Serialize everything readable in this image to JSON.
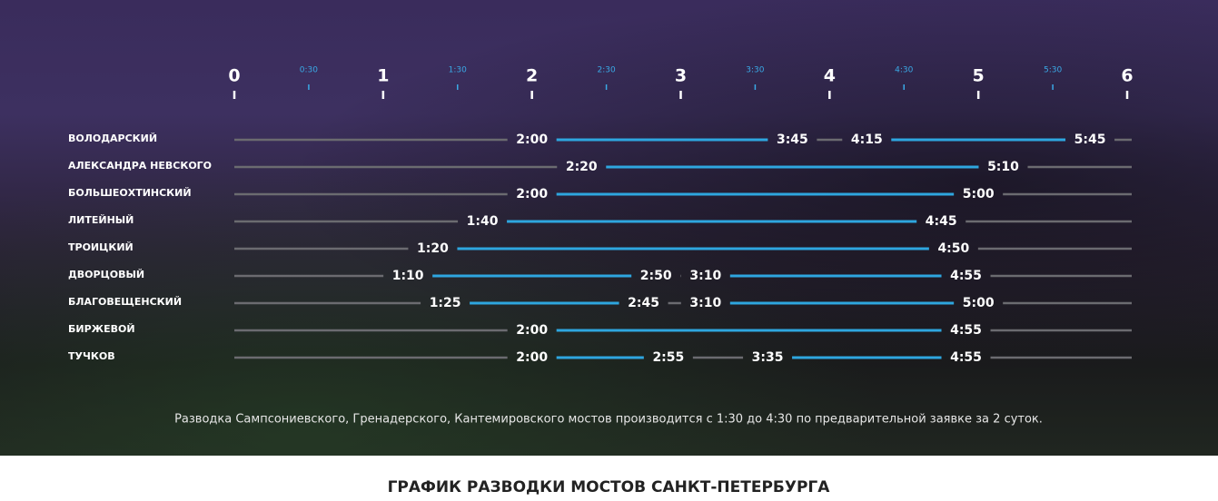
{
  "chart_data": {
    "type": "timeline",
    "title": "ГРАФИК РАЗВОДКИ МОСТОВ САНКТ-ПЕТЕРБУРГА",
    "note": "Разводка Сампсониевского, Гренадерского, Кантемировского мостов производится с 1:30 до 4:30 по предварительной заявке за 2 суток.",
    "xlim": [
      0,
      6
    ],
    "xticks": [
      0,
      {
        "value": 0.5,
        "label": "0:30"
      },
      1,
      {
        "value": 1.5,
        "label": "1:30"
      },
      2,
      {
        "value": 2.5,
        "label": "2:30"
      },
      3,
      {
        "value": 3.5,
        "label": "3:30"
      },
      4,
      {
        "value": 4.5,
        "label": "4:30"
      },
      5,
      {
        "value": 5.5,
        "label": "5:30"
      },
      6
    ],
    "open_color": "#2ea6df",
    "closed_color": "#6b6b70",
    "series": [
      {
        "name": "ВОЛОДАРСКИЙ",
        "values": [
          2,
          3.75,
          4.25,
          5.75
        ],
        "value_labels": [
          "2:00",
          "3:45",
          "4:15",
          "5:45"
        ]
      },
      {
        "name": "АЛЕКСАНДРА НЕВСКОГО",
        "values": [
          2.3333,
          5.1667
        ],
        "value_labels": [
          "2:20",
          "5:10"
        ]
      },
      {
        "name": "БОЛЬШЕОХТИНСКИЙ",
        "values": [
          2,
          5
        ],
        "value_labels": [
          "2:00",
          "5:00"
        ]
      },
      {
        "name": "ЛИТЕЙНЫЙ",
        "values": [
          1.6667,
          4.75
        ],
        "value_labels": [
          "1:40",
          "4:45"
        ]
      },
      {
        "name": "ТРОИЦКИЙ",
        "values": [
          1.3333,
          4.8333
        ],
        "value_labels": [
          "1:20",
          "4:50"
        ]
      },
      {
        "name": "ДВОРЦОВЫЙ",
        "values": [
          1.1667,
          2.8333,
          3.1667,
          4.9167
        ],
        "value_labels": [
          "1:10",
          "2:50",
          "3:10",
          "4:55"
        ]
      },
      {
        "name": "БЛАГОВЕЩЕНСКИЙ",
        "values": [
          1.4167,
          2.75,
          3.1667,
          5
        ],
        "value_labels": [
          "1:25",
          "2:45",
          "3:10",
          "5:00"
        ]
      },
      {
        "name": "БИРЖЕВОЙ",
        "values": [
          2,
          4.9167
        ],
        "value_labels": [
          "2:00",
          "4:55"
        ]
      },
      {
        "name": "ТУЧКОВ",
        "values": [
          2,
          2.9167,
          3.5833,
          4.9167
        ],
        "value_labels": [
          "2:00",
          "2:55",
          "3:35",
          "4:55"
        ]
      }
    ]
  }
}
